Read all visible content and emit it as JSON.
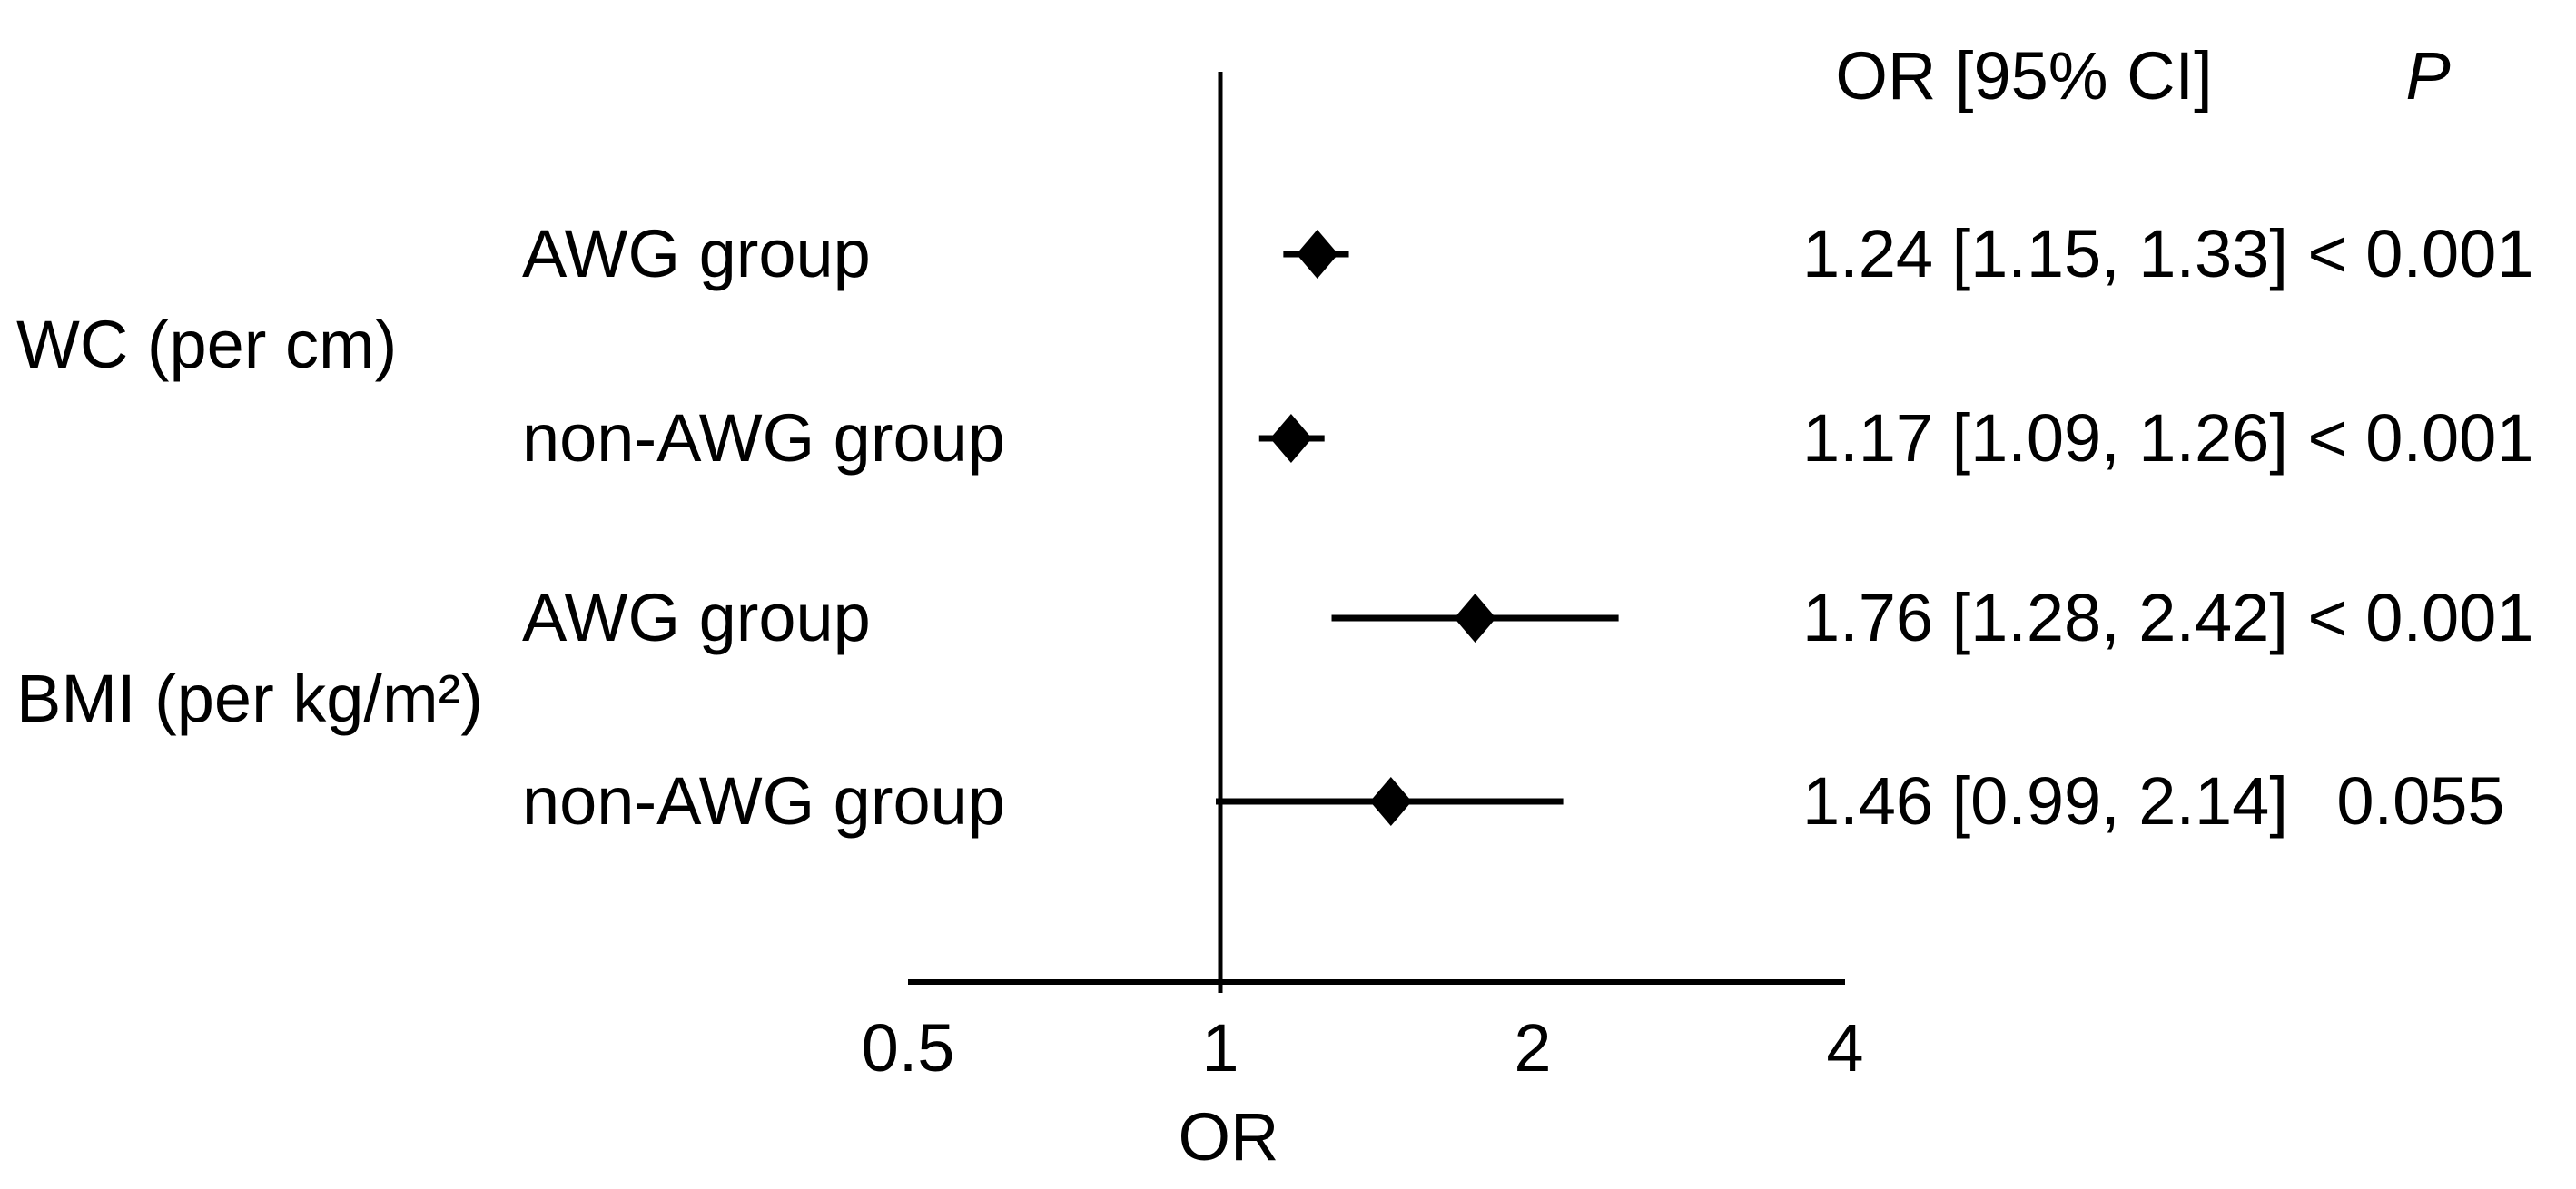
{
  "chart_data": {
    "type": "scatter",
    "chart_kind": "forest_plot",
    "title": "",
    "xlabel": "OR",
    "ylabel": "",
    "x_scale": "log2",
    "x_range": [
      0.5,
      4
    ],
    "x_ticks": [
      {
        "value": 0.5,
        "label": "0.5"
      },
      {
        "value": 1,
        "label": "1"
      },
      {
        "value": 2,
        "label": "2"
      },
      {
        "value": 4,
        "label": "4"
      }
    ],
    "reference_line": 1,
    "grid": false,
    "marker": "diamond",
    "colors": {
      "foreground": "#000000",
      "background": "#ffffff"
    },
    "columns": {
      "estimate": "OR [95% CI]",
      "p": "P"
    },
    "groups": [
      {
        "label": "WC (per cm)",
        "rows": [
          {
            "label": "AWG group",
            "or": 1.24,
            "ci_low": 1.15,
            "ci_high": 1.33,
            "estimate_text": "1.24 [1.15, 1.33]",
            "p_text": "< 0.001"
          },
          {
            "label": "non-AWG group",
            "or": 1.17,
            "ci_low": 1.09,
            "ci_high": 1.26,
            "estimate_text": "1.17 [1.09, 1.26]",
            "p_text": "< 0.001"
          }
        ]
      },
      {
        "label": "BMI (per kg/m²)",
        "rows": [
          {
            "label": "AWG group",
            "or": 1.76,
            "ci_low": 1.28,
            "ci_high": 2.42,
            "estimate_text": "1.76 [1.28, 2.42]",
            "p_text": "< 0.001"
          },
          {
            "label": "non-AWG group",
            "or": 1.46,
            "ci_low": 0.99,
            "ci_high": 2.14,
            "estimate_text": "1.46 [0.99, 2.14]",
            "p_text": "0.055"
          }
        ]
      }
    ]
  }
}
